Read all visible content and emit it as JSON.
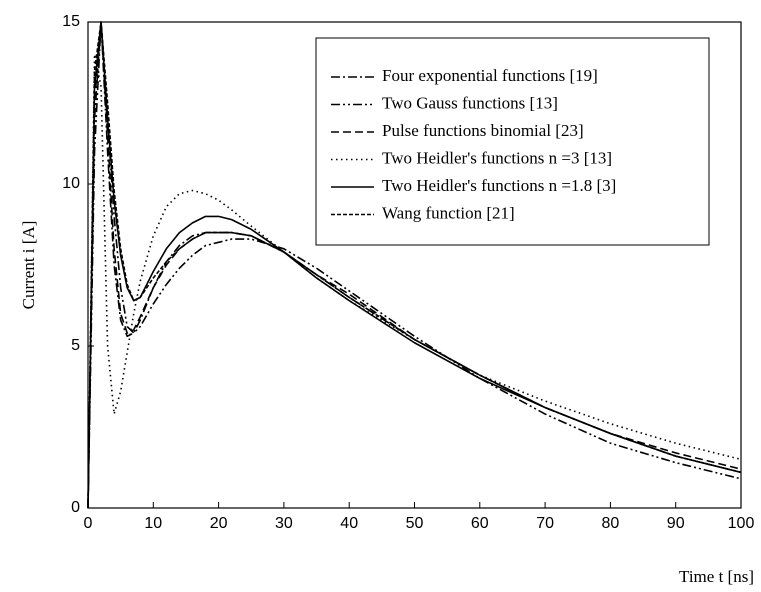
{
  "chart_data": {
    "type": "line",
    "xlabel": "Time t [ns]",
    "ylabel": "Current  i [A]",
    "x": [
      0,
      1,
      2,
      3,
      4,
      5,
      6,
      7,
      8,
      10,
      12,
      14,
      16,
      18,
      20,
      22,
      25,
      30,
      35,
      40,
      50,
      60,
      70,
      80,
      90,
      100
    ],
    "xlim": [
      0,
      100
    ],
    "xticks": [
      0,
      10,
      20,
      30,
      40,
      50,
      60,
      70,
      80,
      90,
      100
    ],
    "ylim": [
      0,
      15
    ],
    "yticks": [
      0,
      5,
      10,
      15
    ],
    "legend": "upper right",
    "series": [
      {
        "name": "Four exponential functions [19]",
        "color": "#000000",
        "dash": "dash-dot",
        "values": [
          0,
          12,
          15,
          11,
          7.5,
          5.8,
          5.3,
          5.4,
          5.8,
          6.8,
          7.6,
          8.1,
          8.4,
          8.5,
          8.5,
          8.5,
          8.4,
          7.9,
          7.2,
          6.5,
          5.2,
          4.1,
          3.1,
          2.3,
          1.6,
          1.1
        ]
      },
      {
        "name": "Two Gauss functions [13]",
        "color": "#000000",
        "dash": "dash-dot-dot",
        "values": [
          0,
          11,
          15,
          12,
          9,
          6.8,
          5.6,
          5.4,
          5.6,
          6.3,
          6.9,
          7.4,
          7.8,
          8.1,
          8.2,
          8.3,
          8.3,
          8.0,
          7.4,
          6.7,
          5.3,
          4.0,
          2.9,
          2.0,
          1.4,
          0.9
        ]
      },
      {
        "name": "Pulse functions binomial [23]",
        "color": "#000000",
        "dash": "dashed",
        "values": [
          0,
          12.5,
          15,
          11.5,
          8,
          6,
          5.4,
          5.5,
          5.9,
          6.8,
          7.5,
          8.0,
          8.3,
          8.5,
          8.5,
          8.5,
          8.4,
          7.9,
          7.2,
          6.6,
          5.2,
          4.1,
          3.1,
          2.3,
          1.7,
          1.2
        ]
      },
      {
        "name": "Two Heidler's functions n =3 [13]",
        "color": "#000000",
        "dash": "dotted",
        "values": [
          0,
          14,
          13,
          5,
          2.9,
          3.6,
          4.8,
          6.0,
          7.0,
          8.4,
          9.3,
          9.7,
          9.8,
          9.7,
          9.5,
          9.2,
          8.7,
          7.9,
          7.1,
          6.4,
          5.2,
          4.1,
          3.3,
          2.6,
          2.0,
          1.5
        ]
      },
      {
        "name": "Two Heidler's functions n =1.8 [3]",
        "color": "#000000",
        "dash": "solid",
        "values": [
          0,
          13,
          15,
          12,
          9.5,
          7.8,
          6.8,
          6.4,
          6.5,
          7.3,
          8.0,
          8.5,
          8.8,
          9.0,
          9.0,
          8.9,
          8.6,
          7.9,
          7.1,
          6.4,
          5.1,
          4.0,
          3.1,
          2.3,
          1.6,
          1.1
        ]
      },
      {
        "name": "Wang function [21]",
        "color": "#000000",
        "dash": "short-dash",
        "values": [
          0,
          13.5,
          15,
          12.5,
          9.8,
          8,
          6.9,
          6.4,
          6.5,
          7.1,
          7.6,
          8.0,
          8.3,
          8.5,
          8.5,
          8.5,
          8.4,
          7.9,
          7.2,
          6.5,
          5.2,
          4.1,
          3.1,
          2.3,
          1.6,
          1.1
        ]
      }
    ]
  }
}
